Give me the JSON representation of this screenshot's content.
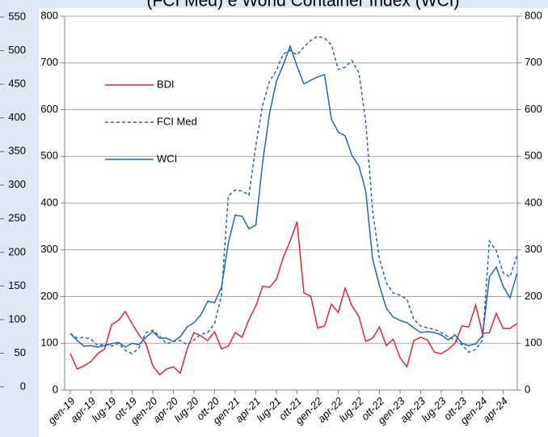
{
  "chart_data": {
    "type": "line",
    "title": "(FCI Med) e World Container Index (WCI)",
    "categories": [
      "gen-19",
      null,
      null,
      "apr-19",
      null,
      null,
      "lug-19",
      null,
      null,
      "ott-19",
      null,
      null,
      "gen-20",
      null,
      null,
      "apr-20",
      null,
      null,
      "lug-20",
      null,
      null,
      "ott-20",
      null,
      null,
      "gen-21",
      null,
      null,
      "apr-21",
      null,
      null,
      "lug-21",
      null,
      null,
      "ott-21",
      null,
      null,
      "gen-22",
      null,
      null,
      "apr-22",
      null,
      null,
      "lug-22",
      null,
      null,
      "ott-22",
      null,
      null,
      "gen-23",
      null,
      null,
      "apr-23",
      null,
      null,
      "lug-23",
      null,
      null,
      "ott-23",
      null,
      null,
      "gen-24",
      null,
      null,
      "apr-24",
      null,
      null
    ],
    "series": [
      {
        "name": "BDI",
        "color": "#e8242b",
        "dash": "solid",
        "values": [
          78,
          45,
          52,
          61,
          78,
          88,
          140,
          149,
          168,
          142,
          118,
          100,
          52,
          33,
          45,
          50,
          36,
          88,
          123,
          116,
          106,
          125,
          88,
          94,
          123,
          113,
          151,
          180,
          222,
          220,
          237,
          284,
          319,
          360,
          208,
          201,
          133,
          137,
          184,
          166,
          218,
          180,
          158,
          104,
          111,
          135,
          95,
          109,
          69,
          50,
          106,
          113,
          107,
          81,
          78,
          87,
          100,
          137,
          135,
          182,
          121,
          123,
          164,
          132,
          132,
          142
        ]
      },
      {
        "name": "FCI Med",
        "color": "#1f66b3",
        "dash": "dashed",
        "values": [
          121,
          111,
          113,
          109,
          95,
          99,
          94,
          100,
          85,
          78,
          90,
          123,
          128,
          116,
          99,
          104,
          106,
          97,
          107,
          119,
          123,
          142,
          203,
          416,
          428,
          426,
          417,
          523,
          610,
          661,
          684,
          719,
          727,
          717,
          734,
          748,
          757,
          753,
          739,
          686,
          691,
          705,
          679,
          575,
          384,
          281,
          229,
          208,
          203,
          194,
          151,
          137,
          133,
          130,
          123,
          114,
          107,
          97,
          81,
          87,
          107,
          319,
          298,
          251,
          242,
          287
        ]
      },
      {
        "name": "WCI",
        "color": "#1f66b3",
        "dash": "solid",
        "values": [
          121,
          106,
          94,
          95,
          92,
          95,
          99,
          102,
          92,
          100,
          97,
          113,
          125,
          111,
          111,
          104,
          114,
          135,
          144,
          161,
          190,
          187,
          220,
          315,
          374,
          372,
          345,
          353,
          488,
          592,
          661,
          696,
          736,
          693,
          655,
          663,
          670,
          675,
          580,
          552,
          544,
          502,
          480,
          426,
          281,
          223,
          175,
          156,
          149,
          144,
          133,
          123,
          125,
          123,
          118,
          107,
          118,
          100,
          95,
          99,
          116,
          242,
          263,
          222,
          197,
          249
        ]
      }
    ],
    "ylim": [
      0,
      800
    ],
    "yticks": [
      0,
      100,
      200,
      300,
      400,
      500,
      600,
      700,
      800
    ],
    "y2lim": [
      0,
      800
    ],
    "y2ticks": [
      0,
      100,
      200,
      300,
      400,
      500,
      600,
      700,
      800
    ],
    "grid": true,
    "legend": "upper-left"
  },
  "background_axis": {
    "ylim": [
      0,
      550
    ],
    "yticks": [
      0,
      50,
      100,
      150,
      200,
      250,
      300,
      350,
      400,
      450,
      500,
      550
    ]
  }
}
